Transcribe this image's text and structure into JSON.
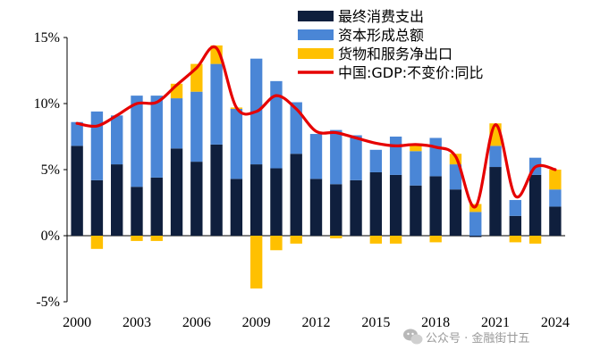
{
  "chart_data": {
    "type": "bar",
    "stacked": true,
    "categories": [
      "2000",
      "2001",
      "2002",
      "2003",
      "2004",
      "2005",
      "2006",
      "2007",
      "2008",
      "2009",
      "2010",
      "2011",
      "2012",
      "2013",
      "2014",
      "2015",
      "2016",
      "2017",
      "2018",
      "2019",
      "2020",
      "2021",
      "2022",
      "2023",
      "2024"
    ],
    "x_tick_labels": [
      "2000",
      "2003",
      "2006",
      "2009",
      "2012",
      "2015",
      "2018",
      "2021",
      "2024"
    ],
    "y_tick_labels": [
      "-5%",
      "0%",
      "5%",
      "10%",
      "15%"
    ],
    "y_ticks": [
      -5,
      0,
      5,
      10,
      15
    ],
    "ylim": [
      -5,
      15
    ],
    "title": "",
    "xlabel": "",
    "ylabel": "",
    "series": [
      {
        "name": "最终消费支出",
        "kind": "bar",
        "color": "#0f1f3d",
        "values": [
          6.8,
          4.2,
          5.4,
          3.7,
          4.4,
          6.6,
          5.6,
          6.9,
          4.3,
          5.4,
          5.1,
          6.2,
          4.3,
          3.9,
          4.2,
          4.8,
          4.6,
          3.8,
          4.5,
          3.5,
          -0.1,
          5.2,
          1.5,
          4.6,
          2.2
        ]
      },
      {
        "name": "资本形成总额",
        "kind": "bar",
        "color": "#4a86d6",
        "values": [
          1.8,
          5.2,
          3.7,
          6.9,
          6.2,
          3.8,
          5.3,
          6.1,
          5.3,
          8.0,
          6.6,
          3.9,
          3.4,
          4.1,
          3.4,
          1.7,
          2.9,
          2.6,
          2.9,
          1.9,
          1.8,
          1.6,
          1.2,
          1.3,
          1.3
        ]
      },
      {
        "name": "货物和服务净出口",
        "kind": "bar",
        "color": "#ffc000",
        "values": [
          0.0,
          -1.0,
          0.0,
          -0.4,
          -0.4,
          1.1,
          2.1,
          1.4,
          0.1,
          -4.0,
          -1.1,
          -0.6,
          0.0,
          -0.2,
          0.0,
          -0.6,
          -0.6,
          0.4,
          -0.5,
          0.8,
          0.6,
          1.7,
          -0.5,
          -0.6,
          1.5
        ]
      },
      {
        "name": "中国:GDP:不变价:同比",
        "kind": "line",
        "color": "#e60000",
        "values": [
          8.5,
          8.3,
          9.1,
          10.0,
          10.1,
          11.4,
          12.7,
          14.2,
          9.7,
          9.4,
          10.6,
          9.6,
          7.9,
          7.8,
          7.4,
          7.0,
          6.8,
          6.9,
          6.7,
          6.0,
          2.2,
          8.4,
          3.0,
          5.2,
          5.0
        ]
      }
    ],
    "legend_position": "top-right"
  },
  "watermark": {
    "text": "公众号 · 金融街廿五",
    "icon": "wechat-icon"
  }
}
